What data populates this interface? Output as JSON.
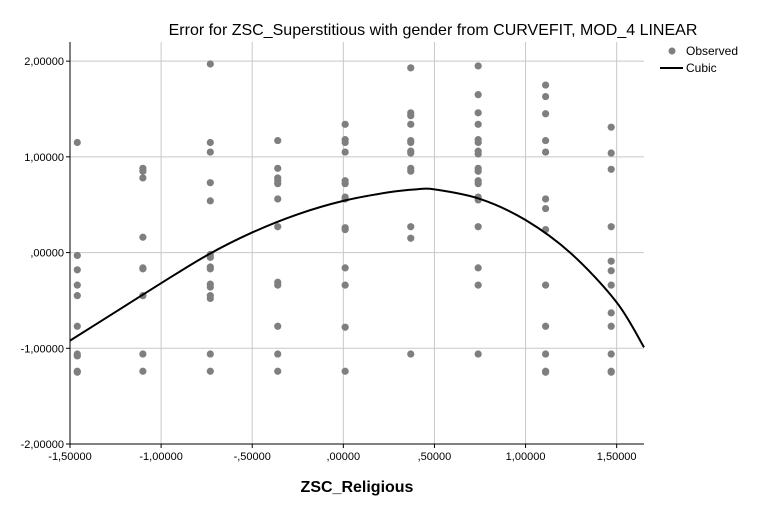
{
  "chart_data": {
    "type": "scatter",
    "title": "Error for ZSC_Superstitious with gender from CURVEFIT, MOD_4 LINEAR",
    "xlabel": "ZSC_Religious",
    "ylabel": "",
    "xlim": [
      -1.5,
      1.65
    ],
    "ylim": [
      -2.0,
      2.2
    ],
    "xticks": [
      -1.5,
      -1.0,
      -0.5,
      0.0,
      0.5,
      1.0,
      1.5
    ],
    "xtick_labels": [
      "-1,50000",
      "-1,00000",
      "-,50000",
      ",00000",
      ",50000",
      "1,00000",
      "1,50000"
    ],
    "yticks": [
      -2.0,
      -1.0,
      0.0,
      1.0,
      2.0
    ],
    "ytick_labels": [
      "-2,00000",
      "-1,00000",
      ",00000",
      "1,00000",
      "2,00000"
    ],
    "grid": true,
    "legend_position": "top-right",
    "legend": [
      "Observed",
      "Cubic"
    ],
    "observed": {
      "name": "Observed",
      "color": "#7f7f7f",
      "points": [
        [
          -1.46,
          1.15
        ],
        [
          -1.46,
          -0.03
        ],
        [
          -1.46,
          -0.18
        ],
        [
          -1.46,
          -0.34
        ],
        [
          -1.46,
          -0.45
        ],
        [
          -1.46,
          -0.77
        ],
        [
          -1.46,
          -1.06
        ],
        [
          -1.46,
          -1.08
        ],
        [
          -1.46,
          -1.24
        ],
        [
          -1.46,
          -1.25
        ],
        [
          -1.1,
          0.88
        ],
        [
          -1.1,
          0.85
        ],
        [
          -1.1,
          0.78
        ],
        [
          -1.1,
          0.16
        ],
        [
          -1.1,
          -0.16
        ],
        [
          -1.1,
          -0.17
        ],
        [
          -1.1,
          -0.45
        ],
        [
          -1.1,
          -1.06
        ],
        [
          -1.1,
          -1.24
        ],
        [
          -0.73,
          1.97
        ],
        [
          -0.73,
          1.15
        ],
        [
          -0.73,
          1.05
        ],
        [
          -0.73,
          0.73
        ],
        [
          -0.73,
          0.54
        ],
        [
          -0.73,
          -0.02
        ],
        [
          -0.73,
          -0.05
        ],
        [
          -0.73,
          -0.15
        ],
        [
          -0.73,
          -0.17
        ],
        [
          -0.73,
          -0.33
        ],
        [
          -0.73,
          -0.36
        ],
        [
          -0.73,
          -0.45
        ],
        [
          -0.73,
          -0.48
        ],
        [
          -0.73,
          -1.06
        ],
        [
          -0.73,
          -1.24
        ],
        [
          -0.36,
          1.17
        ],
        [
          -0.36,
          0.88
        ],
        [
          -0.36,
          0.78
        ],
        [
          -0.36,
          0.75
        ],
        [
          -0.36,
          0.72
        ],
        [
          -0.36,
          0.56
        ],
        [
          -0.36,
          0.27
        ],
        [
          -0.36,
          -0.31
        ],
        [
          -0.36,
          -0.34
        ],
        [
          -0.36,
          -0.77
        ],
        [
          -0.36,
          -1.06
        ],
        [
          -0.36,
          -1.24
        ],
        [
          0.01,
          1.34
        ],
        [
          0.01,
          1.18
        ],
        [
          0.01,
          1.15
        ],
        [
          0.01,
          1.05
        ],
        [
          0.01,
          0.75
        ],
        [
          0.01,
          0.72
        ],
        [
          0.01,
          0.58
        ],
        [
          0.01,
          0.56
        ],
        [
          0.01,
          0.26
        ],
        [
          0.01,
          0.24
        ],
        [
          0.01,
          -0.16
        ],
        [
          0.01,
          -0.34
        ],
        [
          0.01,
          -0.78
        ],
        [
          0.01,
          -1.24
        ],
        [
          0.37,
          1.93
        ],
        [
          0.37,
          1.46
        ],
        [
          0.37,
          1.43
        ],
        [
          0.37,
          1.34
        ],
        [
          0.37,
          1.17
        ],
        [
          0.37,
          1.15
        ],
        [
          0.37,
          1.06
        ],
        [
          0.37,
          1.04
        ],
        [
          0.37,
          0.88
        ],
        [
          0.37,
          0.85
        ],
        [
          0.37,
          0.27
        ],
        [
          0.37,
          0.15
        ],
        [
          0.37,
          -1.06
        ],
        [
          0.74,
          1.95
        ],
        [
          0.74,
          1.65
        ],
        [
          0.74,
          1.46
        ],
        [
          0.74,
          1.34
        ],
        [
          0.74,
          1.18
        ],
        [
          0.74,
          1.15
        ],
        [
          0.74,
          1.06
        ],
        [
          0.74,
          1.03
        ],
        [
          0.74,
          0.88
        ],
        [
          0.74,
          0.85
        ],
        [
          0.74,
          0.75
        ],
        [
          0.74,
          0.72
        ],
        [
          0.74,
          0.58
        ],
        [
          0.74,
          0.55
        ],
        [
          0.74,
          0.27
        ],
        [
          0.74,
          -0.16
        ],
        [
          0.74,
          -0.34
        ],
        [
          0.74,
          -1.06
        ],
        [
          1.11,
          1.75
        ],
        [
          1.11,
          1.63
        ],
        [
          1.11,
          1.45
        ],
        [
          1.11,
          1.17
        ],
        [
          1.11,
          1.05
        ],
        [
          1.11,
          0.56
        ],
        [
          1.11,
          0.46
        ],
        [
          1.11,
          0.24
        ],
        [
          1.11,
          -0.34
        ],
        [
          1.11,
          -0.77
        ],
        [
          1.11,
          -1.06
        ],
        [
          1.11,
          -1.24
        ],
        [
          1.11,
          -1.25
        ],
        [
          1.47,
          1.31
        ],
        [
          1.47,
          1.04
        ],
        [
          1.47,
          0.87
        ],
        [
          1.47,
          0.27
        ],
        [
          1.47,
          -0.09
        ],
        [
          1.47,
          -0.19
        ],
        [
          1.47,
          -0.34
        ],
        [
          1.47,
          -0.63
        ],
        [
          1.47,
          -0.77
        ],
        [
          1.47,
          -1.06
        ],
        [
          1.47,
          -1.24
        ],
        [
          1.47,
          -1.25
        ]
      ]
    },
    "cubic": {
      "name": "Cubic",
      "color": "#000000",
      "points": [
        [
          -1.5,
          -0.92
        ],
        [
          -1.25,
          -0.62
        ],
        [
          -1.0,
          -0.32
        ],
        [
          -0.75,
          -0.03
        ],
        [
          -0.5,
          0.21
        ],
        [
          -0.25,
          0.4
        ],
        [
          0.0,
          0.54
        ],
        [
          0.25,
          0.63
        ],
        [
          0.4,
          0.66
        ],
        [
          0.5,
          0.66
        ],
        [
          0.75,
          0.56
        ],
        [
          1.0,
          0.34
        ],
        [
          1.25,
          -0.01
        ],
        [
          1.5,
          -0.52
        ],
        [
          1.65,
          -0.99
        ]
      ]
    }
  }
}
